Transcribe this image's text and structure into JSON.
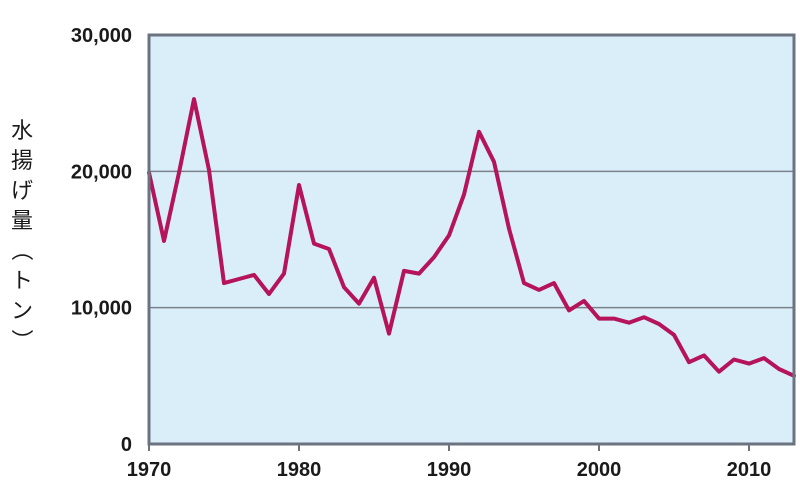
{
  "chart_data": {
    "type": "line",
    "title": "",
    "xlabel": "",
    "ylabel": "水揚げ量（トン）",
    "xlim": [
      1970,
      2013
    ],
    "ylim": [
      0,
      30000
    ],
    "x_ticks": [
      1970,
      1980,
      1990,
      2000,
      2010
    ],
    "x_tick_labels": [
      "1970",
      "1980",
      "1990",
      "2000",
      "2010"
    ],
    "y_ticks": [
      0,
      10000,
      20000,
      30000
    ],
    "y_tick_labels": [
      "0",
      "10,000",
      "20,000",
      "30,000"
    ],
    "grid": "horizontal",
    "colors": {
      "line": "#b5135a",
      "plot_bg": "#daeefa",
      "frame": "#6b7380",
      "grid": "#7a8088"
    },
    "series": [
      {
        "x": [
          1970,
          1971,
          1972,
          1973,
          1974,
          1975,
          1976,
          1977,
          1978,
          1979,
          1980,
          1981,
          1982,
          1983,
          1984,
          1985,
          1986,
          1987,
          1988,
          1989,
          1990,
          1991,
          1992,
          1993,
          1994,
          1995,
          1996,
          1997,
          1998,
          1999,
          2000,
          2001,
          2002,
          2003,
          2004,
          2005,
          2006,
          2007,
          2008,
          2009,
          2010,
          2011,
          2012,
          2013
        ],
        "values": [
          19900,
          14900,
          19900,
          25300,
          20100,
          11800,
          12100,
          12400,
          11000,
          12500,
          19000,
          14700,
          14300,
          11500,
          10300,
          12200,
          8100,
          12700,
          12500,
          13700,
          15300,
          18300,
          22900,
          20700,
          15800,
          11800,
          11300,
          11800,
          9800,
          10500,
          9200,
          9200,
          8900,
          9300,
          8800,
          8000,
          6000,
          6500,
          5300,
          6200,
          5900,
          6300,
          5500,
          5000
        ]
      }
    ]
  }
}
